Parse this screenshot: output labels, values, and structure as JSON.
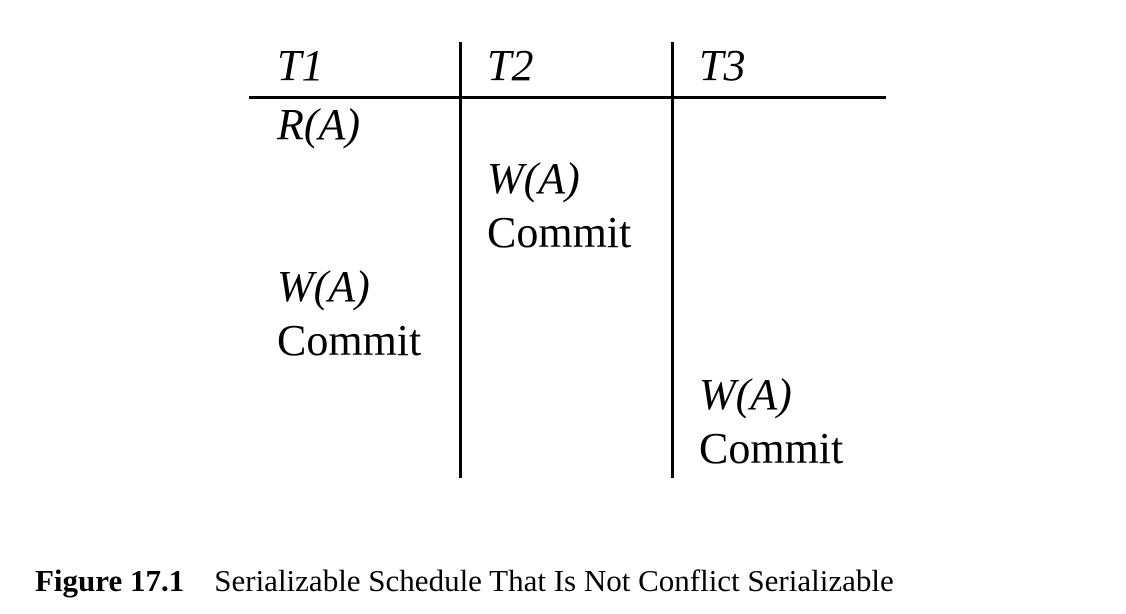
{
  "table": {
    "headers": [
      "T1",
      "T2",
      "T3"
    ],
    "operations": [
      {
        "text": "R(A)"
      },
      {
        "text": "W(A)"
      },
      {
        "text": "Commit"
      },
      {
        "text": "W(A)"
      },
      {
        "text": "Commit"
      },
      {
        "text": "W(A)"
      },
      {
        "text": "Commit"
      }
    ]
  },
  "caption": {
    "label": "Figure 17.1",
    "text": "Serializable Schedule That Is Not Conflict Serializable"
  }
}
